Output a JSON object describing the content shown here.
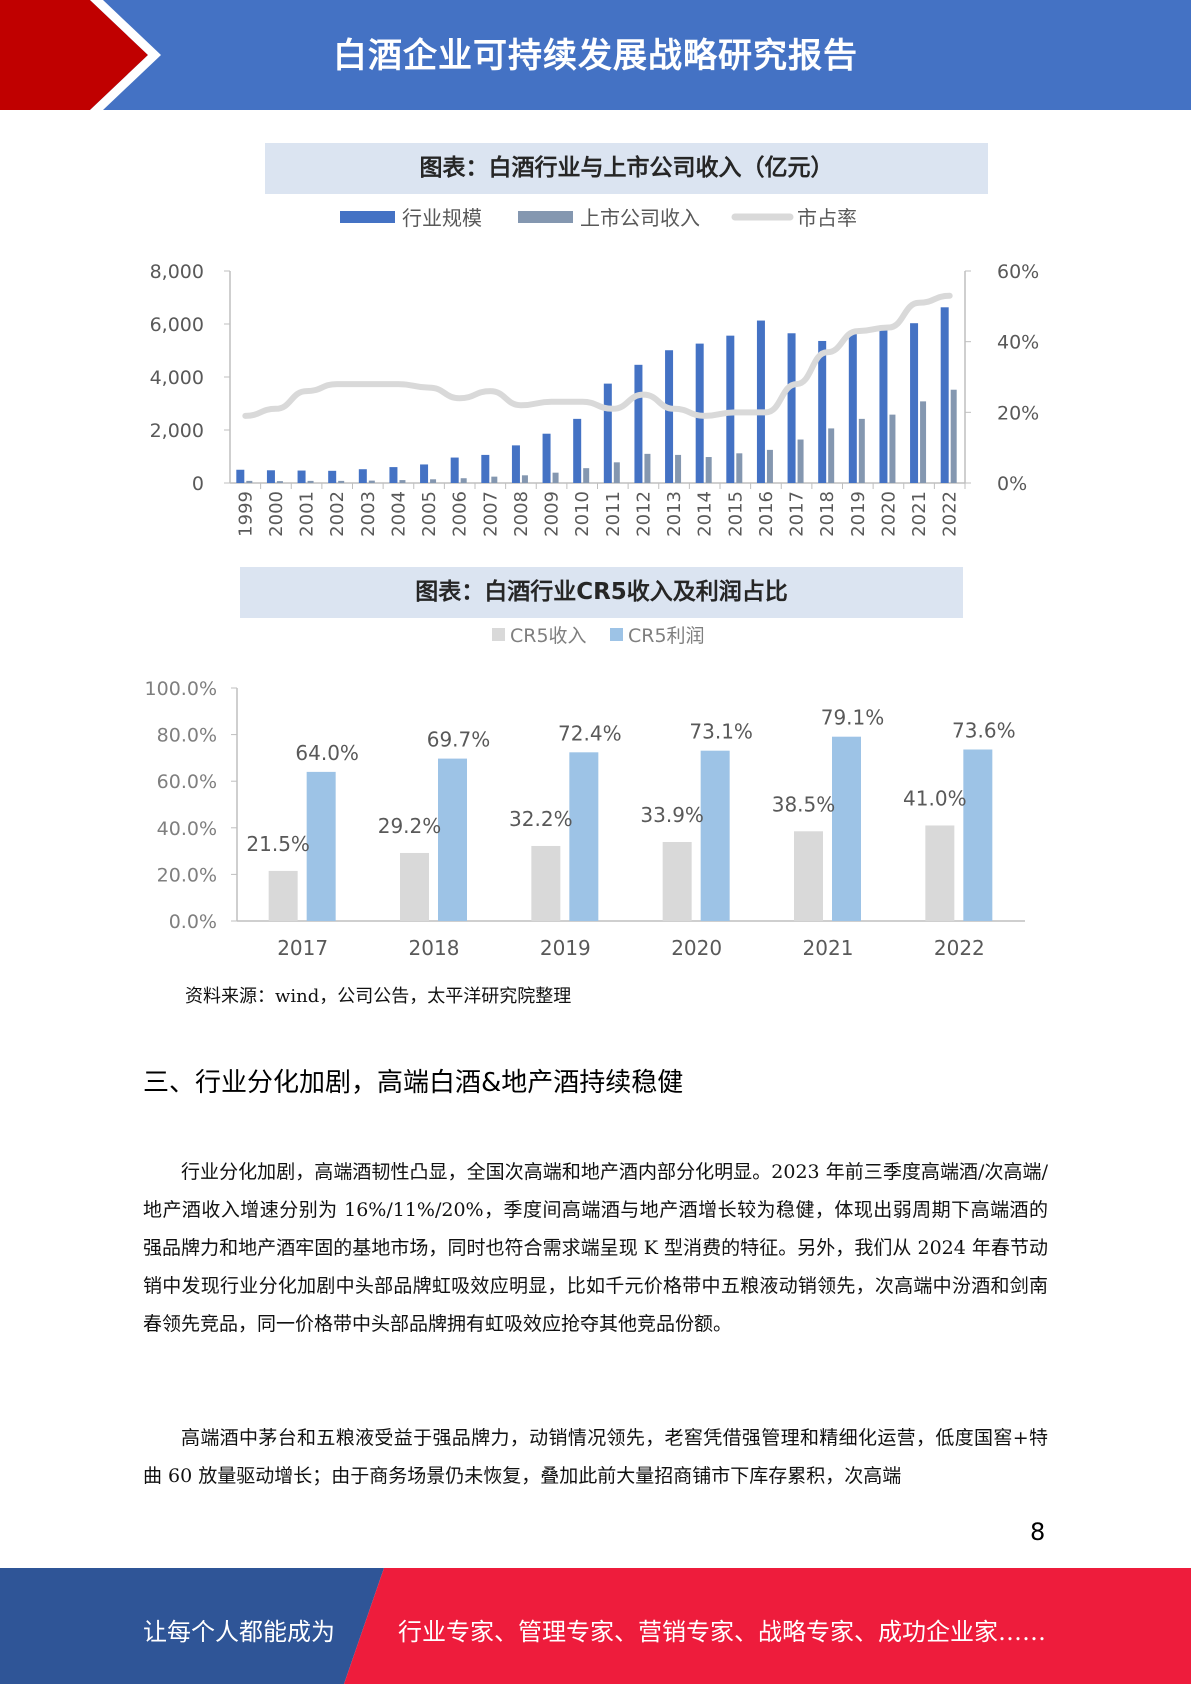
{
  "header": {
    "title": "白酒企业可持续发展战略研究报告"
  },
  "colors": {
    "header_blue": "#4472c4",
    "accent_red": "#c00000",
    "footer_blue": "#2f5597",
    "footer_red": "#ee1c3c"
  },
  "chart1_title": "图表：白酒行业与上市公司收入（亿元）",
  "chart2_title": "图表：白酒行业CR5收入及利润占比",
  "chart_data": [
    {
      "type": "bar",
      "categories": [
        "1999",
        "2000",
        "2001",
        "2002",
        "2003",
        "2004",
        "2005",
        "2006",
        "2007",
        "2008",
        "2009",
        "2010",
        "2011",
        "2012",
        "2013",
        "2014",
        "2015",
        "2016",
        "2017",
        "2018",
        "2019",
        "2020",
        "2021",
        "2022"
      ],
      "series": [
        {
          "name": "行业规模",
          "type": "bar",
          "color": "#4472c4",
          "values": [
            500,
            480,
            470,
            460,
            520,
            600,
            700,
            960,
            1060,
            1420,
            1860,
            2420,
            3750,
            4460,
            5010,
            5260,
            5560,
            6130,
            5650,
            5360,
            5620,
            5840,
            6030,
            6630
          ]
        },
        {
          "name": "上市公司收入",
          "type": "bar",
          "color": "#8497b0",
          "values": [
            80,
            70,
            80,
            80,
            90,
            110,
            140,
            180,
            240,
            290,
            390,
            560,
            780,
            1100,
            1060,
            980,
            1120,
            1250,
            1640,
            2060,
            2420,
            2580,
            3080,
            3520
          ]
        },
        {
          "name": "市占率",
          "type": "line",
          "axis": "right",
          "color": "#d9d9d9",
          "values": [
            19,
            21,
            26,
            28,
            28,
            28,
            27,
            24,
            26,
            22,
            23,
            23,
            21,
            25,
            21,
            19,
            20,
            20,
            28,
            37,
            43,
            44,
            51,
            53
          ]
        }
      ],
      "y_left": {
        "min": 0,
        "max": 8000,
        "ticks": [
          "0",
          "2,000",
          "4,000",
          "6,000",
          "8,000"
        ]
      },
      "y_right": {
        "min": 0,
        "max": 60,
        "ticks": [
          "0%",
          "20%",
          "40%",
          "60%"
        ]
      },
      "legend": "top"
    },
    {
      "type": "bar",
      "categories": [
        "2017",
        "2018",
        "2019",
        "2020",
        "2021",
        "2022"
      ],
      "series": [
        {
          "name": "CR5收入",
          "color": "#d9d9d9",
          "values": [
            21.5,
            29.2,
            32.2,
            33.9,
            38.5,
            41.0
          ],
          "labels": [
            "21.5%",
            "29.2%",
            "32.2%",
            "33.9%",
            "38.5%",
            "41.0%"
          ]
        },
        {
          "name": "CR5利润",
          "color": "#9dc3e6",
          "values": [
            64.0,
            69.7,
            72.4,
            73.1,
            79.1,
            73.6
          ],
          "labels": [
            "64.0%",
            "69.7%",
            "72.4%",
            "73.1%",
            "79.1%",
            "73.6%"
          ]
        }
      ],
      "y": {
        "min": 0,
        "max": 100,
        "ticks": [
          "0.0%",
          "20.0%",
          "40.0%",
          "60.0%",
          "80.0%",
          "100.0%"
        ]
      },
      "legend": "top"
    }
  ],
  "source": "资料来源：wind，公司公告，太平洋研究院整理",
  "section_heading": "三、行业分化加剧，高端白酒&地产酒持续稳健",
  "paragraphs": [
    "行业分化加剧，高端酒韧性凸显，全国次高端和地产酒内部分化明显。2023 年前三季度高端酒/次高端/地产酒收入增速分别为 16%/11%/20%，季度间高端酒与地产酒增长较为稳健，体现出弱周期下高端酒的强品牌力和地产酒牢固的基地市场，同时也符合需求端呈现 K 型消费的特征。另外，我们从 2024 年春节动销中发现行业分化加剧中头部品牌虹吸效应明显，比如千元价格带中五粮液动销领先，次高端中汾酒和剑南春领先竞品，同一价格带中头部品牌拥有虹吸效应抢夺其他竞品份额。",
    "高端酒中茅台和五粮液受益于强品牌力，动销情况领先，老窖凭借强管理和精细化运营，低度国窖+特曲 60 放量驱动增长；由于商务场景仍未恢复，叠加此前大量招商铺市下库存累积，次高端"
  ],
  "page_number": "8",
  "footer": {
    "left": "让每个人都能成为",
    "right": "行业专家、管理专家、营销专家、战略专家、成功企业家……"
  }
}
